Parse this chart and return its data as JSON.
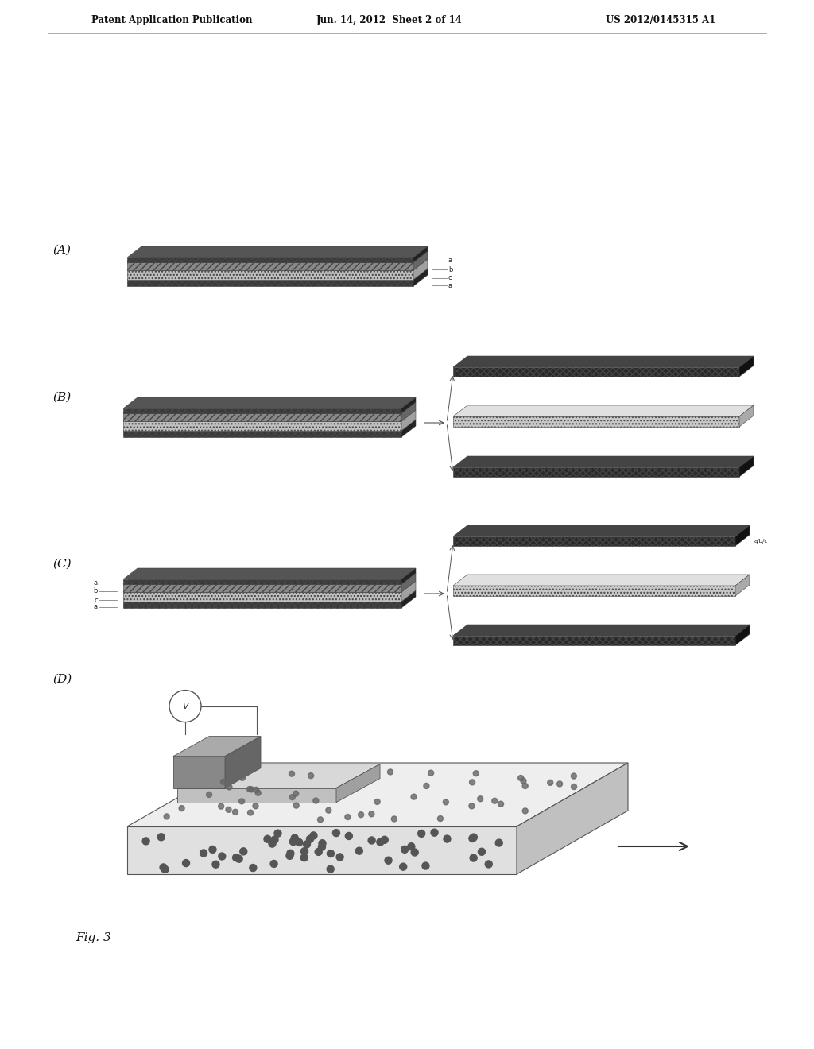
{
  "bg_color": "#ffffff",
  "header_left": "Patent Application Publication",
  "header_mid": "Jun. 14, 2012  Sheet 2 of 14",
  "header_right": "US 2012/0145315 A1",
  "fig_label": "Fig. 3",
  "panel_labels": [
    "(A)",
    "(B)",
    "(C)",
    "(D)"
  ],
  "header_fontsize": 8.5,
  "panel_fontsize": 11,
  "fig_fontsize": 11,
  "label_fontsize": 6,
  "strip_layer_colors": {
    "dark_face": "#3a3a3a",
    "dark_top": "#555555",
    "dark_side": "#222222",
    "mid_face": "#888888",
    "mid_top": "#aaaaaa",
    "mid_side": "#666666",
    "light_face": "#c0c0c0",
    "light_top": "#d8d8d8",
    "light_side": "#a0a0a0",
    "sep_dark_face": "#2a2a2a",
    "sep_dark_top": "#444444",
    "sep_dark_side": "#111111",
    "sep_light_face": "#c8c8c8",
    "sep_light_top": "#e0e0e0",
    "sep_light_side": "#aaaaaa"
  },
  "plate_face": "#e0e0e0",
  "plate_top": "#eeeeee",
  "plate_side": "#c0c0c0",
  "acp_face": "#c0c0c0",
  "acp_top": "#d8d8d8",
  "acp_side": "#a0a0a0",
  "elec_face": "#888888",
  "elec_top": "#aaaaaa",
  "elec_side": "#666666",
  "dot_color": "#555555",
  "arrow_color": "#555555",
  "text_color": "#222222"
}
